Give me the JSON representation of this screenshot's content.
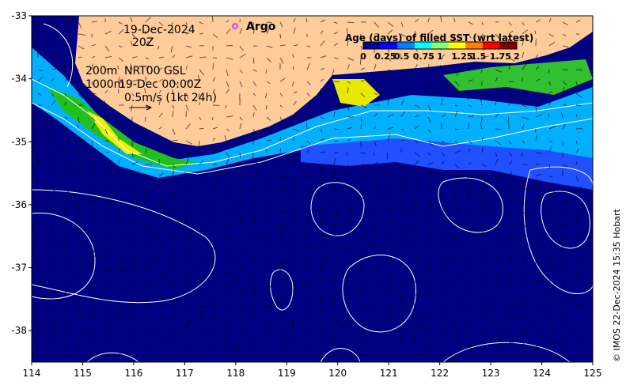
{
  "map": {
    "x_ticks": [
      "114",
      "115",
      "116",
      "117",
      "118",
      "119",
      "120",
      "121",
      "122",
      "123",
      "124",
      "125"
    ],
    "y_ticks": [
      "-33",
      "-34",
      "-35",
      "-36",
      "-37",
      "-38"
    ],
    "x_range": [
      114,
      125
    ],
    "y_range": [
      -38.5,
      -33
    ]
  },
  "annotations": {
    "date_line1": "19-Dec-2024",
    "date_line2": "20Z",
    "contour_200": "200m",
    "contour_1000": "1000m",
    "product": "NRT00 GSL",
    "product_time": "19-Dec 00:00Z",
    "scale_text": "0.5m/s (1kt 24h)",
    "argo_label": "Argo"
  },
  "legend": {
    "title": "Age (days) of filled SST (wrt latest)",
    "ticks": [
      "0",
      "0.25",
      "0.5",
      "0.75",
      "1",
      "1.25",
      "1.5",
      "1.75",
      "2"
    ],
    "colors": [
      "#00008f",
      "#0000ff",
      "#0080ff",
      "#00ffff",
      "#80ff80",
      "#ffff00",
      "#ff8000",
      "#ff0000",
      "#800000"
    ]
  },
  "credit": "© IMOS 22-Dec-2024 15:35 Hobart",
  "colors": {
    "land": "#ffcc99",
    "ocean_deep": "#000080",
    "argo": "#ff00ff"
  }
}
